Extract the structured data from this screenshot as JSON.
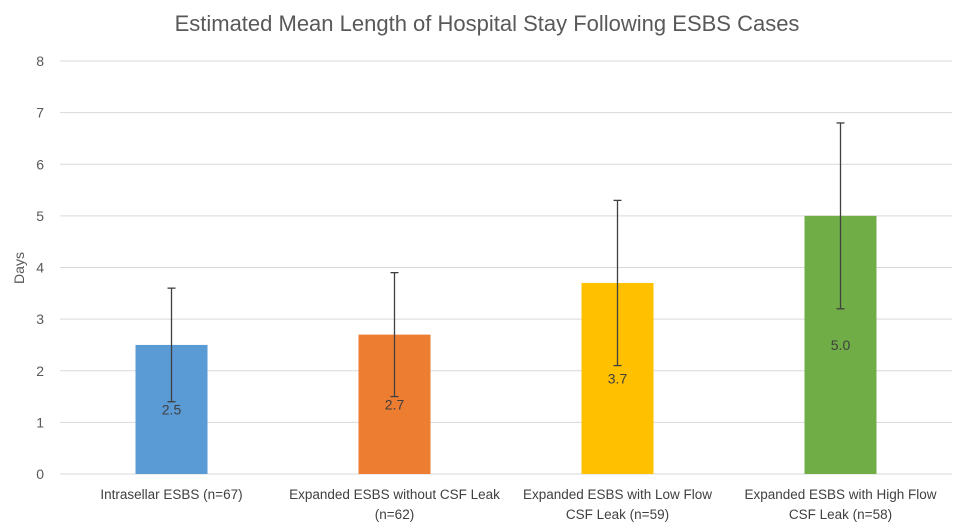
{
  "chart_data": {
    "type": "bar",
    "title": "Estimated Mean Length of Hospital Stay Following ESBS Cases",
    "xlabel": "",
    "ylabel": "Days",
    "ylim": [
      0,
      8
    ],
    "yticks": [
      "0",
      "1",
      "2",
      "3",
      "4",
      "5",
      "6",
      "7",
      "8"
    ],
    "grid": true,
    "legend": "none",
    "categories": [
      [
        "Intrasellar ESBS (n=67)"
      ],
      [
        "Expanded ESBS without CSF Leak",
        "(n=62)"
      ],
      [
        "Expanded ESBS with Low Flow",
        "CSF Leak (n=59)"
      ],
      [
        "Expanded ESBS with High Flow",
        "CSF Leak (n=58)"
      ]
    ],
    "values": [
      2.5,
      2.7,
      3.7,
      5.0
    ],
    "data_labels": [
      "2.5",
      "2.7",
      "3.7",
      "5.0"
    ],
    "error_low": [
      1.4,
      1.5,
      2.1,
      3.2
    ],
    "error_high": [
      3.6,
      3.9,
      5.3,
      6.8
    ],
    "colors": [
      "#5b9bd5",
      "#ed7d31",
      "#ffc000",
      "#70ad47"
    ]
  }
}
